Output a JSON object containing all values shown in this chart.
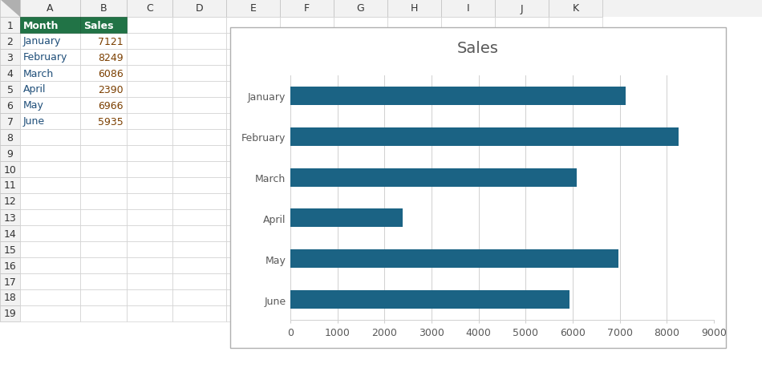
{
  "months": [
    "January",
    "February",
    "March",
    "April",
    "May",
    "June"
  ],
  "sales": [
    7121,
    8249,
    6086,
    2390,
    6966,
    5935
  ],
  "bar_color": "#1b6384",
  "title": "Sales",
  "title_fontsize": 14,
  "title_color": "#595959",
  "tick_fontsize": 9,
  "tick_color": "#595959",
  "xlim": [
    0,
    9000
  ],
  "xticks": [
    0,
    1000,
    2000,
    3000,
    4000,
    5000,
    6000,
    7000,
    8000,
    9000
  ],
  "grid_color": "#d0d0d0",
  "chart_bg": "#ffffff",
  "excel_bg": "#ffffff",
  "figure_bg": "#d6d6d6",
  "bar_height": 0.45,
  "col_headers": [
    "Month",
    "Sales"
  ],
  "header_bg": "#217346",
  "header_fg": "#ffffff",
  "row_data": [
    [
      "January",
      "7121"
    ],
    [
      "February",
      "8249"
    ],
    [
      "March",
      "6086"
    ],
    [
      "April",
      "2390"
    ],
    [
      "May",
      "6966"
    ],
    [
      "June",
      "5935"
    ]
  ],
  "row_numbers": [
    1,
    2,
    3,
    4,
    5,
    6,
    7,
    8,
    9,
    10,
    11,
    12,
    13,
    14,
    15,
    16,
    17,
    18,
    19
  ],
  "col_letters": [
    "A",
    "B",
    "C",
    "D",
    "E",
    "F",
    "G",
    "H",
    "I",
    "J",
    "K"
  ],
  "chart_border_color": "#b0b0b0"
}
